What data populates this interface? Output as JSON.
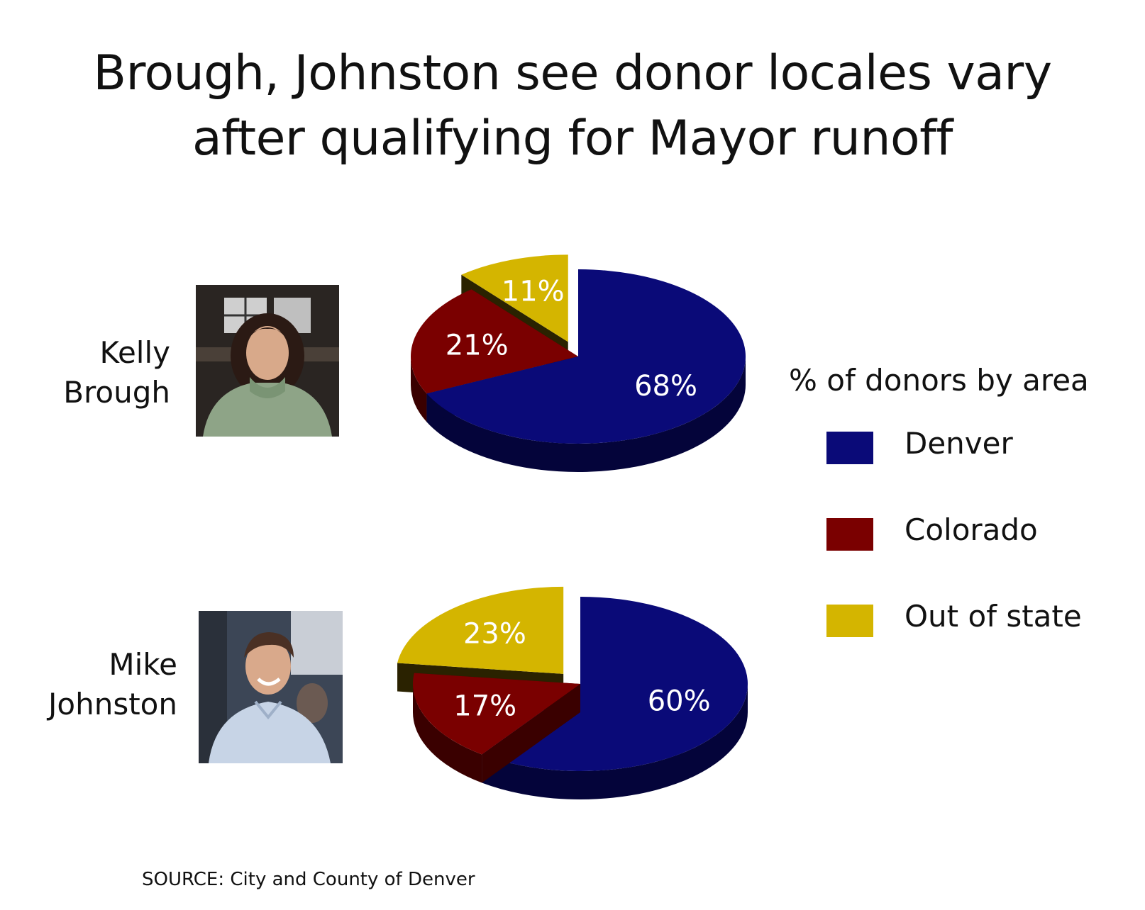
{
  "title_lines": [
    "Brough, Johnston see donor locales vary",
    "after qualifying for Mayor runoff"
  ],
  "legend": {
    "title": "% of donors by area",
    "items": [
      {
        "label": "Denver",
        "color": "#0a0a78"
      },
      {
        "label": "Colorado",
        "color": "#7a0000"
      },
      {
        "label": "Out of state",
        "color": "#d4b500"
      }
    ]
  },
  "source": "SOURCE: City and County of Denver",
  "chart_data": [
    {
      "type": "pie",
      "name_lines": [
        "Kelly",
        "Brough"
      ],
      "categories": [
        "Denver",
        "Colorado",
        "Out of state"
      ],
      "values": [
        68,
        21,
        11
      ],
      "labels": [
        "68%",
        "21%",
        "11%"
      ],
      "exploded": "Out of state"
    },
    {
      "type": "pie",
      "name_lines": [
        "Mike",
        "Johnston"
      ],
      "categories": [
        "Denver",
        "Colorado",
        "Out of state"
      ],
      "values": [
        60,
        17,
        23
      ],
      "labels": [
        "60%",
        "17%",
        "23%"
      ],
      "exploded": "Out of state"
    }
  ]
}
